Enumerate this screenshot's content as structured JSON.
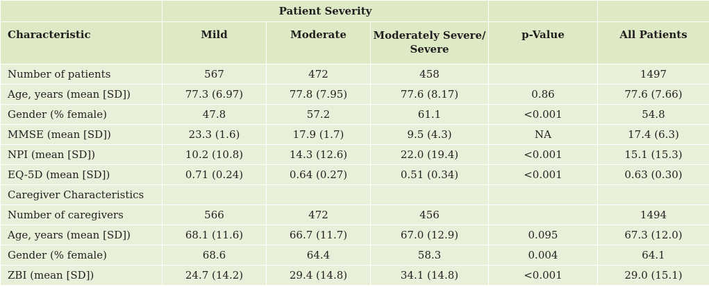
{
  "table": {
    "group_header": "Patient Severity",
    "columns": [
      "Characteristic",
      "Mild",
      "Moderate",
      "Moderately Severe/ Severe",
      "p-Value",
      "All Patients"
    ],
    "rows": [
      [
        "Number of patients",
        "567",
        "472",
        "458",
        "",
        "1497"
      ],
      [
        "Age, years (mean [SD])",
        "77.3 (6.97)",
        "77.8 (7.95)",
        "77.6 (8.17)",
        "0.86",
        "77.6 (7.66)"
      ],
      [
        "Gender (% female)",
        "47.8",
        "57.2",
        "61.1",
        "<0.001",
        "54.8"
      ],
      [
        "MMSE (mean [SD])",
        "23.3 (1.6)",
        "17.9 (1.7)",
        "9.5 (4.3)",
        "NA",
        "17.4 (6.3)"
      ],
      [
        "NPI (mean [SD])",
        "10.2 (10.8)",
        "14.3 (12.6)",
        "22.0 (19.4)",
        "<0.001",
        "15.1 (15.3)"
      ],
      [
        "EQ-5D (mean [SD])",
        "0.71 (0.24)",
        "0.64 (0.27)",
        "0.51 (0.34)",
        "<0.001",
        "0.63 (0.30)"
      ],
      [
        "Caregiver Characteristics",
        "",
        "",
        "",
        "",
        ""
      ],
      [
        "Number of caregivers",
        "566",
        "472",
        "456",
        "",
        "1494"
      ],
      [
        "Age, years (mean [SD])",
        "68.1 (11.6)",
        "66.7 (11.7)",
        "67.0 (12.9)",
        "0.095",
        "67.3 (12.0)"
      ],
      [
        "Gender (% female)",
        "68.6",
        "64.4",
        "58.3",
        "0.004",
        "64.1"
      ],
      [
        "ZBI (mean [SD])",
        "24.7 (14.2)",
        "29.4 (14.8)",
        "34.1 (14.8)",
        "<0.001",
        "29.0 (15.1)"
      ]
    ]
  }
}
